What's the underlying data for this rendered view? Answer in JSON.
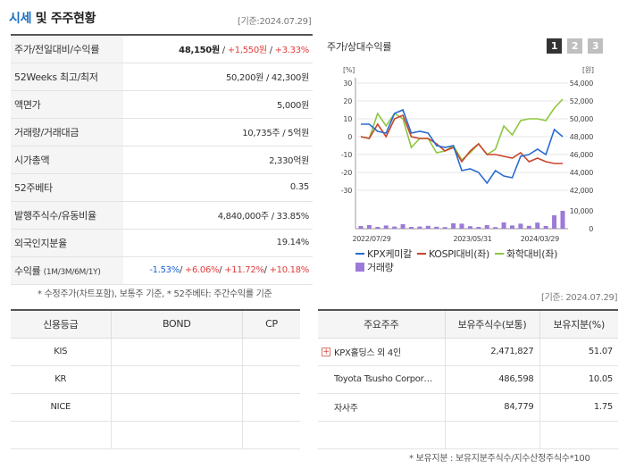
{
  "header": {
    "title_main": "시세",
    "title_rest": " 및 주주현황",
    "date": "[기준:2024.07.29]"
  },
  "info": {
    "rows": [
      {
        "label": "주가/전일대비/수익률"
      },
      {
        "label": "52Weeks 최고/최저",
        "value": "50,200원 / 42,300원"
      },
      {
        "label": "액면가",
        "value": "5,000원"
      },
      {
        "label": "거래량/거래대금",
        "value": "10,735주 / 5억원"
      },
      {
        "label": "시가총액",
        "value": "2,330억원"
      },
      {
        "label": "52주베타",
        "value": "0.35"
      },
      {
        "label": "발행주식수/유동비율",
        "value": "4,840,000주 / 33.85%"
      },
      {
        "label": "외국인지분율",
        "value": "19.14%"
      },
      {
        "label": "수익률",
        "sub": "(1M/3M/6M/1Y)"
      }
    ],
    "price": "48,150원",
    "change": "+1,550원",
    "rate": "+3.33%",
    "returns": [
      "-1.53%",
      "+6.06%",
      "+11.72%",
      "+10.18%"
    ],
    "note": "* 수정주가(차트포함), 보통주 기준, * 52주베타: 주간수익률 기준"
  },
  "chart": {
    "title": "주가/상대수익률",
    "tabs": [
      "1",
      "2",
      "3"
    ],
    "left_unit": "[%]",
    "right_unit": "[원]",
    "legend": {
      "kpx": "KPX케미칼",
      "kospi": "KOSPI대비(좌)",
      "chem": "화학대비(좌)",
      "vol": "거래량"
    },
    "colors": {
      "kpx": "#2a6bd1",
      "kospi": "#c9432b",
      "chem": "#8dc63f",
      "vol": "#9b7ad8"
    }
  },
  "chart_data": {
    "type": "line",
    "x_tick_labels": [
      "2022/07/29",
      "2023/05/31",
      "2024/03/29"
    ],
    "left_ticks": [
      30,
      20,
      10,
      0,
      -10,
      -20,
      -30
    ],
    "right_ticks": [
      54000,
      52000,
      50000,
      48000,
      46000,
      44000,
      42000
    ],
    "volume_ticks": [
      10000,
      0
    ],
    "ylim_left": [
      -30,
      30
    ],
    "ylim_right": [
      42000,
      54000
    ],
    "series": [
      {
        "name": "KPX케미칼",
        "values": [
          7,
          7,
          3,
          2,
          13,
          15,
          2,
          3,
          2,
          -5,
          -6,
          -5,
          -19,
          -18,
          -20,
          -26,
          -19,
          -22,
          -23,
          -11,
          -10,
          -7,
          -10,
          4,
          0
        ]
      },
      {
        "name": "KOSPI대비(좌)",
        "values": [
          0,
          -1,
          7,
          0,
          10,
          12,
          0,
          -1,
          -1,
          -4,
          -8,
          -6,
          -14,
          -8,
          -4,
          -10,
          -10,
          -11,
          -12,
          -9,
          -14,
          -12,
          -14,
          -15,
          -15
        ]
      },
      {
        "name": "화학대비(좌)",
        "values": [
          0,
          -1,
          13,
          6,
          13,
          10,
          -6,
          -1,
          -1,
          -9,
          -8,
          -5,
          -13,
          -9,
          -4,
          -10,
          -7,
          6,
          1,
          9,
          10,
          10,
          9,
          16,
          21
        ]
      },
      {
        "name": "거래량",
        "values": [
          1500,
          2000,
          1000,
          1800,
          1200,
          2500,
          1000,
          1200,
          1600,
          1100,
          900,
          3000,
          2800,
          1400,
          1000,
          2000,
          900,
          3500,
          1800,
          2800,
          1600,
          3400,
          1500,
          7500,
          10500
        ]
      }
    ]
  },
  "credit": {
    "headers": [
      "신용등급",
      "BOND",
      "CP"
    ],
    "rows": [
      [
        "KIS",
        "",
        ""
      ],
      [
        "KR",
        "",
        ""
      ],
      [
        "NICE",
        "",
        ""
      ],
      [
        "",
        "",
        ""
      ]
    ]
  },
  "holders": {
    "date": "[기준: 2024.07.29]",
    "headers": [
      "주요주주",
      "보유주식수(보통)",
      "보유지분(%)"
    ],
    "rows": [
      [
        "KPX홀딩스 외 4인",
        "2,471,827",
        "51.07"
      ],
      [
        "Toyota Tsusho Corpor…",
        "486,598",
        "10.05"
      ],
      [
        "자사주",
        "84,779",
        "1.75"
      ],
      [
        "",
        "",
        ""
      ]
    ],
    "note": "* 보유지분 : 보유지분주식수/지수산정주식수*100"
  }
}
